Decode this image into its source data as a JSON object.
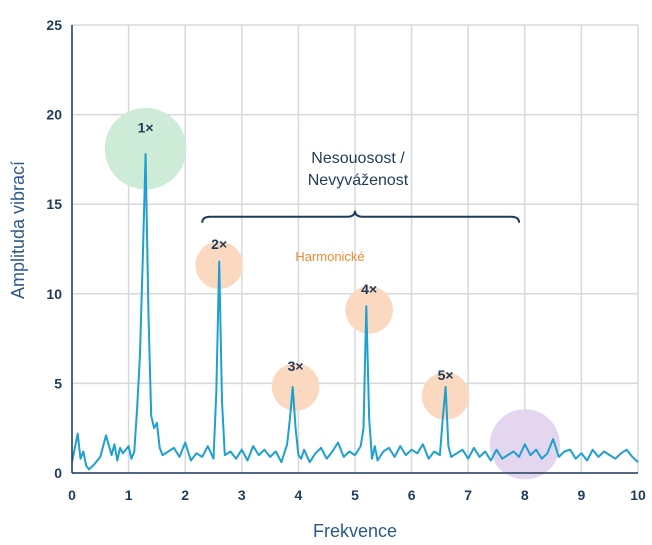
{
  "chart_data": {
    "type": "line",
    "xlabel": "Frekvence",
    "ylabel": "Amplituda vibrací",
    "xlim": [
      0,
      10
    ],
    "ylim": [
      0,
      25
    ],
    "xticks": [
      "0",
      "1",
      "2",
      "3",
      "4",
      "5",
      "6",
      "7",
      "8",
      "9",
      "10"
    ],
    "yticks": [
      "0",
      "5",
      "10",
      "15",
      "20",
      "25"
    ],
    "grid": true,
    "series": [
      {
        "color": "#1ea0d0",
        "x": [
          0.0,
          0.1,
          0.15,
          0.2,
          0.25,
          0.3,
          0.4,
          0.5,
          0.6,
          0.7,
          0.75,
          0.8,
          0.85,
          0.9,
          1.0,
          1.05,
          1.1,
          1.15,
          1.2,
          1.25,
          1.3,
          1.35,
          1.4,
          1.45,
          1.5,
          1.55,
          1.6,
          1.7,
          1.8,
          1.9,
          2.0,
          2.1,
          2.2,
          2.3,
          2.4,
          2.5,
          2.55,
          2.6,
          2.65,
          2.7,
          2.8,
          2.9,
          3.0,
          3.1,
          3.2,
          3.3,
          3.4,
          3.5,
          3.6,
          3.7,
          3.8,
          3.85,
          3.9,
          3.95,
          4.0,
          4.05,
          4.1,
          4.2,
          4.3,
          4.4,
          4.5,
          4.6,
          4.7,
          4.8,
          4.9,
          5.0,
          5.1,
          5.15,
          5.2,
          5.25,
          5.3,
          5.35,
          5.4,
          5.5,
          5.6,
          5.7,
          5.8,
          5.9,
          6.0,
          6.1,
          6.2,
          6.3,
          6.4,
          6.5,
          6.55,
          6.6,
          6.65,
          6.7,
          6.8,
          6.9,
          7.0,
          7.1,
          7.2,
          7.3,
          7.4,
          7.5,
          7.6,
          7.7,
          7.8,
          7.9,
          8.0,
          8.1,
          8.2,
          8.3,
          8.4,
          8.5,
          8.6,
          8.7,
          8.8,
          8.9,
          9.0,
          9.1,
          9.2,
          9.3,
          9.4,
          9.5,
          9.6,
          9.7,
          9.8,
          9.9,
          10.0
        ],
        "values": [
          0.6,
          2.2,
          0.8,
          1.2,
          0.4,
          0.2,
          0.5,
          0.9,
          2.1,
          1.0,
          1.6,
          0.7,
          1.4,
          1.1,
          1.5,
          0.8,
          1.2,
          3.6,
          6.5,
          12.0,
          17.8,
          9.0,
          3.2,
          2.5,
          2.8,
          1.4,
          1.0,
          1.2,
          1.4,
          0.9,
          1.7,
          0.7,
          1.1,
          0.9,
          1.5,
          0.8,
          4.5,
          11.8,
          4.0,
          1.0,
          1.2,
          0.8,
          1.3,
          0.7,
          1.5,
          1.0,
          1.3,
          0.9,
          1.2,
          0.6,
          1.6,
          3.0,
          4.8,
          2.5,
          1.0,
          0.8,
          1.3,
          0.6,
          1.1,
          1.4,
          0.8,
          1.2,
          1.7,
          0.9,
          1.2,
          1.0,
          1.5,
          2.5,
          9.3,
          3.0,
          0.8,
          1.5,
          0.7,
          1.2,
          1.4,
          0.9,
          1.5,
          1.0,
          1.3,
          1.1,
          1.6,
          0.8,
          1.2,
          1.0,
          3.0,
          4.8,
          1.5,
          0.9,
          1.1,
          1.3,
          0.8,
          1.4,
          0.9,
          1.2,
          0.7,
          1.3,
          0.8,
          1.0,
          1.2,
          0.9,
          1.6,
          1.0,
          1.3,
          0.8,
          1.1,
          1.9,
          0.9,
          1.2,
          1.3,
          0.8,
          1.1,
          0.7,
          1.3,
          0.9,
          1.2,
          1.0,
          0.8,
          1.1,
          1.3,
          0.9,
          0.6
        ]
      }
    ],
    "peaks": [
      {
        "label": "1×",
        "x": 1.3,
        "y": 17.8,
        "circle_color": "#cdebd6",
        "circle_r": 0.72,
        "label_y": 19.0
      },
      {
        "label": "2×",
        "x": 2.6,
        "y": 11.8,
        "circle_color": "#fad9c0",
        "circle_r": 0.42,
        "label_y": 12.5
      },
      {
        "label": "3×",
        "x": 3.95,
        "y": 4.8,
        "circle_color": "#fad9c0",
        "circle_r": 0.42,
        "label_y": 5.7
      },
      {
        "label": "4×",
        "x": 5.25,
        "y": 9.3,
        "circle_color": "#fad9c0",
        "circle_r": 0.42,
        "label_y": 10.0
      },
      {
        "label": "5×",
        "x": 6.6,
        "y": 4.8,
        "circle_color": "#fad9c0",
        "circle_r": 0.42,
        "label_y": 5.2
      }
    ],
    "extra_marker": {
      "x": 8.0,
      "y": 1.6,
      "color": "#e4d6ee",
      "r": 0.62
    },
    "annotations": {
      "misalignment": "Nesouosost /",
      "imbalance": "Nevyváženost",
      "harmonics": "Harmonické"
    }
  }
}
